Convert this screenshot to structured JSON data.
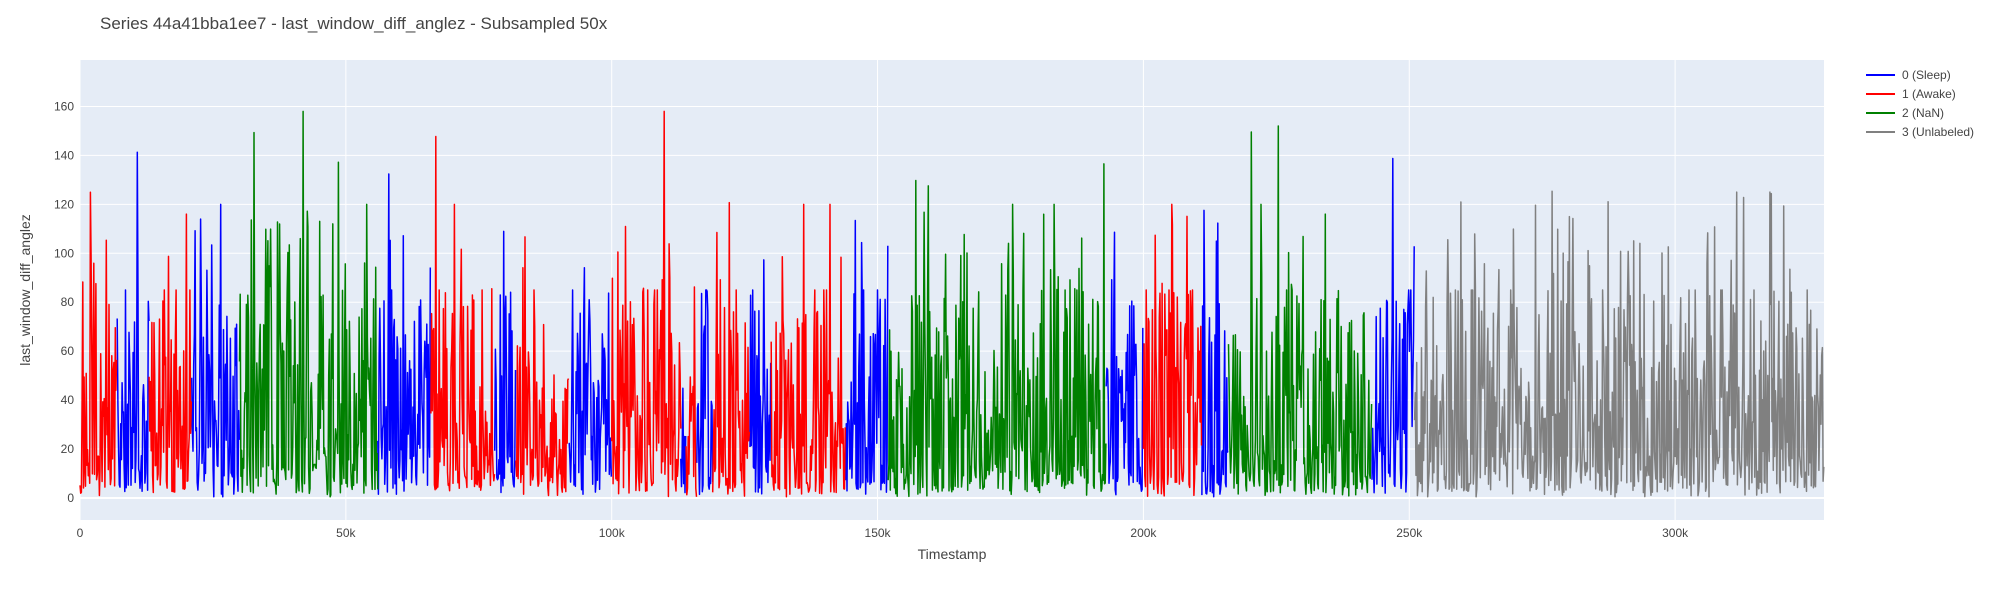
{
  "chart_data": {
    "type": "line",
    "title": "Series 44a41bba1ee7 - last_window_diff_anglez - Subsampled 50x",
    "xlabel": "Timestamp",
    "ylabel": "last_window_diff_anglez",
    "xlim": [
      0,
      328000
    ],
    "ylim": [
      -9,
      179
    ],
    "x_ticks": [
      0,
      50000,
      100000,
      150000,
      200000,
      250000,
      300000
    ],
    "x_tick_labels": [
      "0",
      "50k",
      "100k",
      "150k",
      "200k",
      "250k",
      "300k"
    ],
    "y_ticks": [
      0,
      20,
      40,
      60,
      80,
      100,
      120,
      140,
      160
    ],
    "y_tick_labels": [
      "0",
      "20",
      "40",
      "60",
      "80",
      "100",
      "120",
      "140",
      "160"
    ],
    "grid": true,
    "legend_position": "top-right",
    "colors": {
      "plot_bg": "#E5ECF6",
      "grid": "#FFFFFF",
      "sleep": "#0000FF",
      "awake": "#FF0000",
      "nan": "#008000",
      "unlabeled": "#808080"
    },
    "series": [
      {
        "name": "0 (Sleep)",
        "color": "#0000FF",
        "segments": [
          [
            7000,
            13000
          ],
          [
            21000,
            30000
          ],
          [
            56000,
            66000
          ],
          [
            78000,
            82000
          ],
          [
            92000,
            100000
          ],
          [
            113000,
            114000
          ],
          [
            116000,
            119000
          ],
          [
            126000,
            130000
          ],
          [
            144000,
            152000
          ],
          [
            193000,
            200000
          ],
          [
            211000,
            216000
          ],
          [
            243000,
            251000
          ]
        ]
      },
      {
        "name": "1 (Awake)",
        "color": "#FF0000",
        "segments": [
          [
            0,
            7000
          ],
          [
            13000,
            21000
          ],
          [
            66000,
            78000
          ],
          [
            82000,
            92000
          ],
          [
            100000,
            113000
          ],
          [
            114000,
            116000
          ],
          [
            119000,
            126000
          ],
          [
            130000,
            144000
          ],
          [
            200000,
            211000
          ]
        ]
      },
      {
        "name": "2 (NaN)",
        "color": "#008000",
        "segments": [
          [
            30000,
            56000
          ],
          [
            152000,
            193000
          ],
          [
            216000,
            243000
          ]
        ]
      },
      {
        "name": "3 (Unlabeled)",
        "color": "#808080",
        "segments": [
          [
            251000,
            328000
          ]
        ]
      }
    ]
  }
}
